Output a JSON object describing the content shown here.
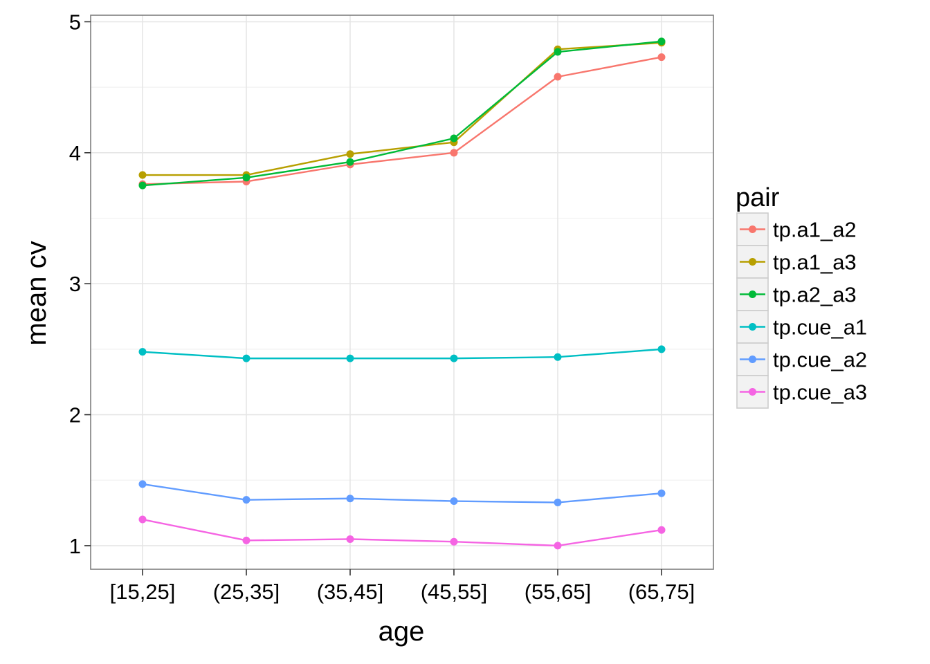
{
  "chart_data": {
    "type": "line",
    "xlabel": "age",
    "ylabel": "mean cv",
    "categories": [
      "[15,25]",
      "(25,35]",
      "(35,45]",
      "(45,55]",
      "(55,65]",
      "(65,75]"
    ],
    "ylim": [
      0.82,
      5.05
    ],
    "yticks": [
      1,
      2,
      3,
      4,
      5
    ],
    "grid": true,
    "legend": {
      "title": "pair",
      "position": "right"
    },
    "series": [
      {
        "name": "tp.a1_a2",
        "color": "#F8766D",
        "values": [
          3.76,
          3.78,
          3.91,
          4.0,
          4.58,
          4.73
        ]
      },
      {
        "name": "tp.a1_a3",
        "color": "#B79F00",
        "values": [
          3.83,
          3.83,
          3.99,
          4.08,
          4.79,
          4.84
        ]
      },
      {
        "name": "tp.a2_a3",
        "color": "#00BA38",
        "values": [
          3.75,
          3.81,
          3.93,
          4.11,
          4.77,
          4.85
        ]
      },
      {
        "name": "tp.cue_a1",
        "color": "#00BFC4",
        "values": [
          2.48,
          2.43,
          2.43,
          2.43,
          2.44,
          2.5
        ]
      },
      {
        "name": "tp.cue_a2",
        "color": "#619CFF",
        "values": [
          1.47,
          1.35,
          1.36,
          1.34,
          1.33,
          1.4
        ]
      },
      {
        "name": "tp.cue_a3",
        "color": "#F564E3",
        "values": [
          1.2,
          1.04,
          1.05,
          1.03,
          1.0,
          1.12
        ]
      }
    ]
  }
}
